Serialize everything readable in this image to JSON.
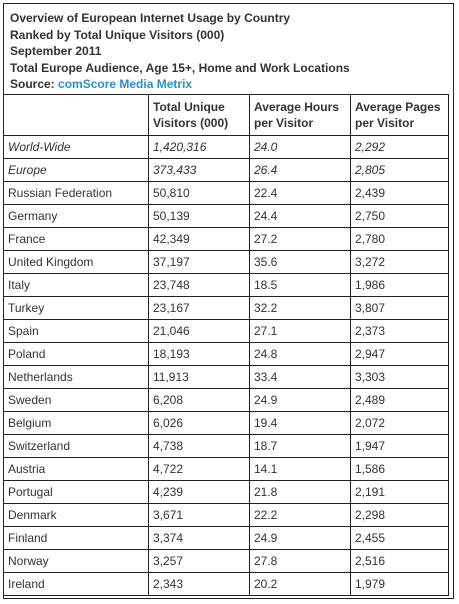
{
  "header": {
    "title": "Overview of European Internet Usage by Country",
    "subtitle": "Ranked by Total Unique Visitors (000)",
    "date": "September 2011",
    "audience": "Total Europe Audience, Age 15+, Home and Work Locations",
    "source_label": "Source:",
    "source_link": "comScore Media Metrix"
  },
  "table": {
    "columns": [
      "",
      "Total Unique Visitors (000)",
      "Average Hours per Visitor",
      "Average Pages per Visitor"
    ],
    "rows": [
      [
        "World-Wide",
        "1,420,316",
        "24.0",
        "2,292"
      ],
      [
        "Europe",
        "373,433",
        "26.4",
        "2,805"
      ],
      [
        "Russian Federation",
        "50,810",
        "22.4",
        "2,439"
      ],
      [
        "Germany",
        "50,139",
        "24.4",
        "2,750"
      ],
      [
        "France",
        "42,349",
        "27.2",
        "2,780"
      ],
      [
        "United Kingdom",
        "37,197",
        "35.6",
        "3,272"
      ],
      [
        "Italy",
        "23,748",
        "18.5",
        "1,986"
      ],
      [
        "Turkey",
        "23,167",
        "32.2",
        "3,807"
      ],
      [
        "Spain",
        "21,046",
        "27.1",
        "2,373"
      ],
      [
        "Poland",
        "18,193",
        "24.8",
        "2,947"
      ],
      [
        "Netherlands",
        "11,913",
        "33.4",
        "3,303"
      ],
      [
        "Sweden",
        "6,208",
        "24.9",
        "2,489"
      ],
      [
        "Belgium",
        "6,026",
        "19.4",
        "2,072"
      ],
      [
        "Switzerland",
        "4,738",
        "18.7",
        "1,947"
      ],
      [
        "Austria",
        "4,722",
        "14.1",
        "1,586"
      ],
      [
        "Portugal",
        "4,239",
        "21.8",
        "2,191"
      ],
      [
        "Denmark",
        "3,671",
        "22.2",
        "2,298"
      ],
      [
        "Finland",
        "3,374",
        "24.9",
        "2,455"
      ],
      [
        "Norway",
        "3,257",
        "27.8",
        "2,516"
      ],
      [
        "Ireland",
        "2,343",
        "20.2",
        "1,979"
      ]
    ]
  },
  "colors": {
    "text": "#333333",
    "link": "#2a8fc1",
    "border": "#222222"
  }
}
